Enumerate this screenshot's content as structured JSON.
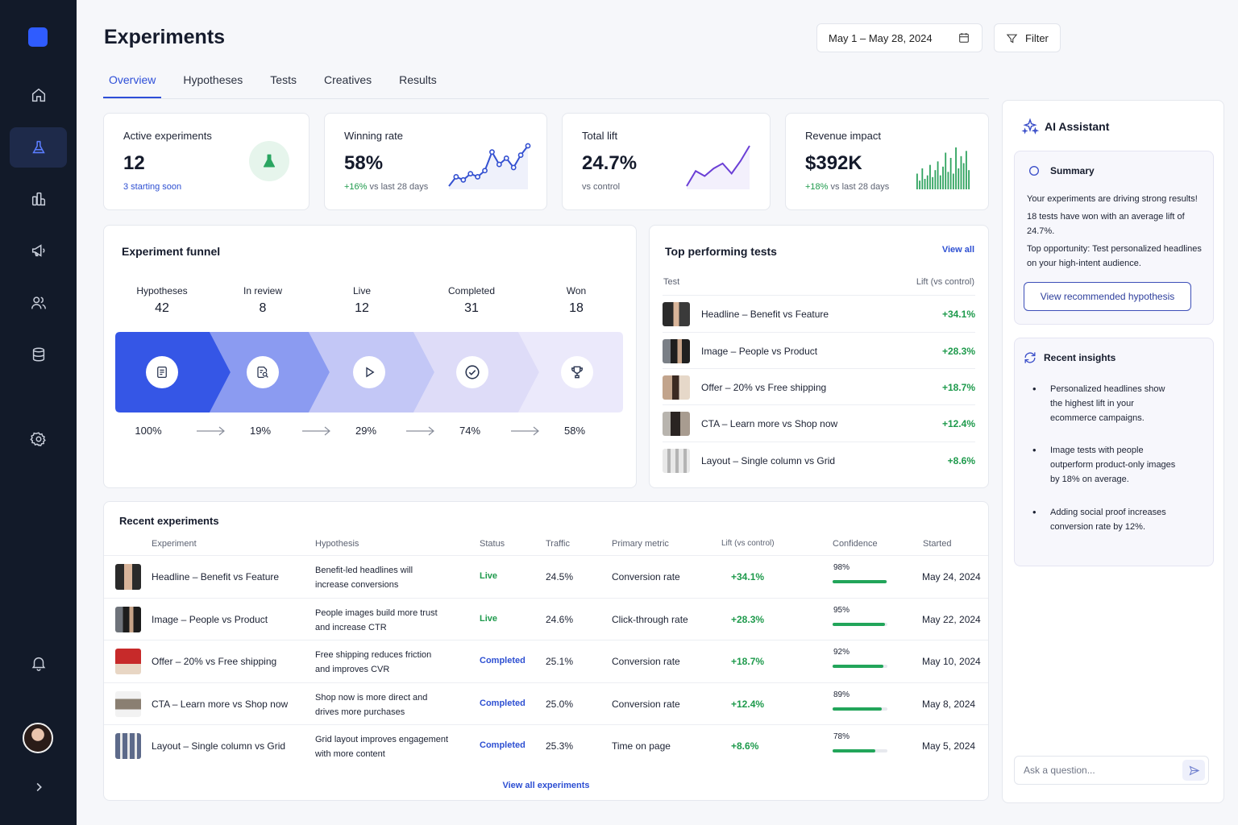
{
  "header": {
    "title": "Experiments",
    "date_range": "May 1 – May 28, 2024",
    "filter_label": "Filter"
  },
  "tabs": [
    "Overview",
    "Hypotheses",
    "Tests",
    "Creatives",
    "Results"
  ],
  "kpis": {
    "active": {
      "label": "Active experiments",
      "value": "12",
      "sub": "3 starting soon"
    },
    "winning": {
      "label": "Winning rate",
      "value": "58%",
      "delta": "+16%",
      "sub": " vs last 28 days",
      "spark": [
        6,
        9,
        8,
        10,
        9,
        11,
        17,
        13,
        15,
        12,
        16,
        19
      ]
    },
    "lift": {
      "label": "Total lift",
      "value": "24.7%",
      "sub": "vs control",
      "spark": [
        3,
        9,
        7,
        10,
        12,
        8,
        13,
        19
      ]
    },
    "revenue": {
      "label": "Revenue impact",
      "value": "$392K",
      "delta": "+18%",
      "sub": " vs last 28 days",
      "bars": [
        9,
        5,
        12,
        6,
        8,
        14,
        7,
        11,
        16,
        8,
        13,
        21,
        10,
        18,
        9,
        24,
        12,
        19,
        15,
        22,
        11
      ]
    }
  },
  "funnel": {
    "title": "Experiment funnel",
    "stages": [
      {
        "label": "Hypotheses",
        "count": "42",
        "pct": "100%"
      },
      {
        "label": "In review",
        "count": "8",
        "pct": "19%"
      },
      {
        "label": "Live",
        "count": "12",
        "pct": "29%"
      },
      {
        "label": "Completed",
        "count": "31",
        "pct": "74%"
      },
      {
        "label": "Won",
        "count": "18",
        "pct": "58%"
      }
    ]
  },
  "top_tests": {
    "title": "Top performing tests",
    "view_all": "View all",
    "col_test": "Test",
    "col_lift": "Lift (vs control)",
    "rows": [
      {
        "name": "Headline – Benefit vs Feature",
        "lift": "+34.1%"
      },
      {
        "name": "Image – People vs Product",
        "lift": "+28.3%"
      },
      {
        "name": "Offer – 20% vs Free shipping",
        "lift": "+18.7%"
      },
      {
        "name": "CTA – Learn more vs Shop now",
        "lift": "+12.4%"
      },
      {
        "name": "Layout – Single column vs Grid",
        "lift": "+8.6%"
      }
    ]
  },
  "recent": {
    "title": "Recent experiments",
    "columns": [
      "Experiment",
      "Hypothesis",
      "Status",
      "Traffic",
      "Primary metric",
      "Lift (vs control)",
      "Confidence",
      "Started"
    ],
    "rows": [
      {
        "name": "Headline – Benefit vs Feature",
        "hyp1": "Benefit-led headlines will",
        "hyp2": "increase conversions",
        "status": "Live",
        "traffic": "24.5%",
        "metric": "Conversion rate",
        "lift": "+34.1%",
        "conf": "98%",
        "conf_value": 98,
        "started": "May 24, 2024"
      },
      {
        "name": "Image – People vs Product",
        "hyp1": "People images build more trust",
        "hyp2": "and increase CTR",
        "status": "Live",
        "traffic": "24.6%",
        "metric": "Click-through rate",
        "lift": "+28.3%",
        "conf": "95%",
        "conf_value": 95,
        "started": "May 22, 2024"
      },
      {
        "name": "Offer – 20% vs Free shipping",
        "hyp1": "Free shipping reduces friction",
        "hyp2": "and improves CVR",
        "status": "Completed",
        "traffic": "25.1%",
        "metric": "Conversion rate",
        "lift": "+18.7%",
        "conf": "92%",
        "conf_value": 92,
        "started": "May 10, 2024"
      },
      {
        "name": "CTA – Learn more vs Shop now",
        "hyp1": "Shop now is more direct and",
        "hyp2": "drives more purchases",
        "status": "Completed",
        "traffic": "25.0%",
        "metric": "Conversion rate",
        "lift": "+12.4%",
        "conf": "89%",
        "conf_value": 89,
        "started": "May 8, 2024"
      },
      {
        "name": "Layout – Single column vs Grid",
        "hyp1": "Grid layout improves engagement",
        "hyp2": "with more content",
        "status": "Completed",
        "traffic": "25.3%",
        "metric": "Time on page",
        "lift": "+8.6%",
        "conf": "78%",
        "conf_value": 78,
        "started": "May 5, 2024"
      }
    ],
    "view_all": "View all experiments"
  },
  "assistant": {
    "title": "AI Assistant",
    "summary_title": "Summary",
    "summary_1": "Your experiments are driving strong results!",
    "summary_2": "18 tests have won with an average lift of 24.7%.",
    "summary_3": "Top opportunity: Test personalized headlines on your high-intent audience.",
    "cta": "View recommended hypothesis",
    "insights_title": "Recent insights",
    "insights": [
      "Personalized headlines show the highest lift in your ecommerce campaigns.",
      "Image tests with people outperform product-only images by 18% on average.",
      "Adding social proof increases conversion rate by 12%."
    ],
    "ask_placeholder": "Ask a question..."
  },
  "colors": {
    "accent": "#2e4fd8",
    "positive": "#1e9a4c",
    "sidebar": "#121a29"
  }
}
